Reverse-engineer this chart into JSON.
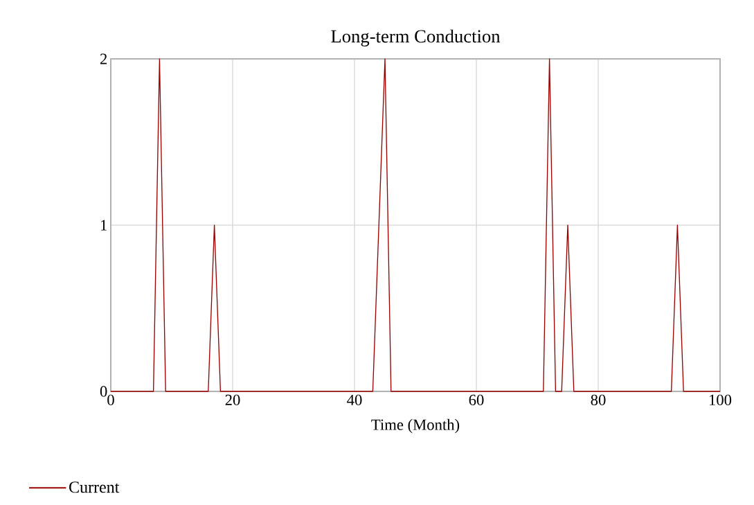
{
  "chart_data": {
    "type": "line",
    "title": "Long-term Conduction",
    "xlabel": "Time (Month)",
    "x": [
      0,
      7,
      8,
      9,
      16,
      17,
      18,
      43,
      45,
      46,
      71,
      72,
      73,
      74,
      75,
      76,
      92,
      93,
      94,
      100
    ],
    "series": [
      {
        "name": "Current",
        "color": "#990000",
        "values": [
          0,
          0,
          2,
          0,
          0,
          1,
          0,
          0,
          2,
          0,
          0,
          2,
          0,
          0,
          1,
          0,
          0,
          1,
          0,
          0
        ]
      }
    ],
    "xlim": [
      0,
      100
    ],
    "xticks": [
      0,
      20,
      40,
      60,
      80,
      100
    ],
    "ylim": [
      0,
      2
    ],
    "yticks": [
      0,
      1,
      2
    ],
    "grid": true,
    "legend": "bottom left"
  }
}
